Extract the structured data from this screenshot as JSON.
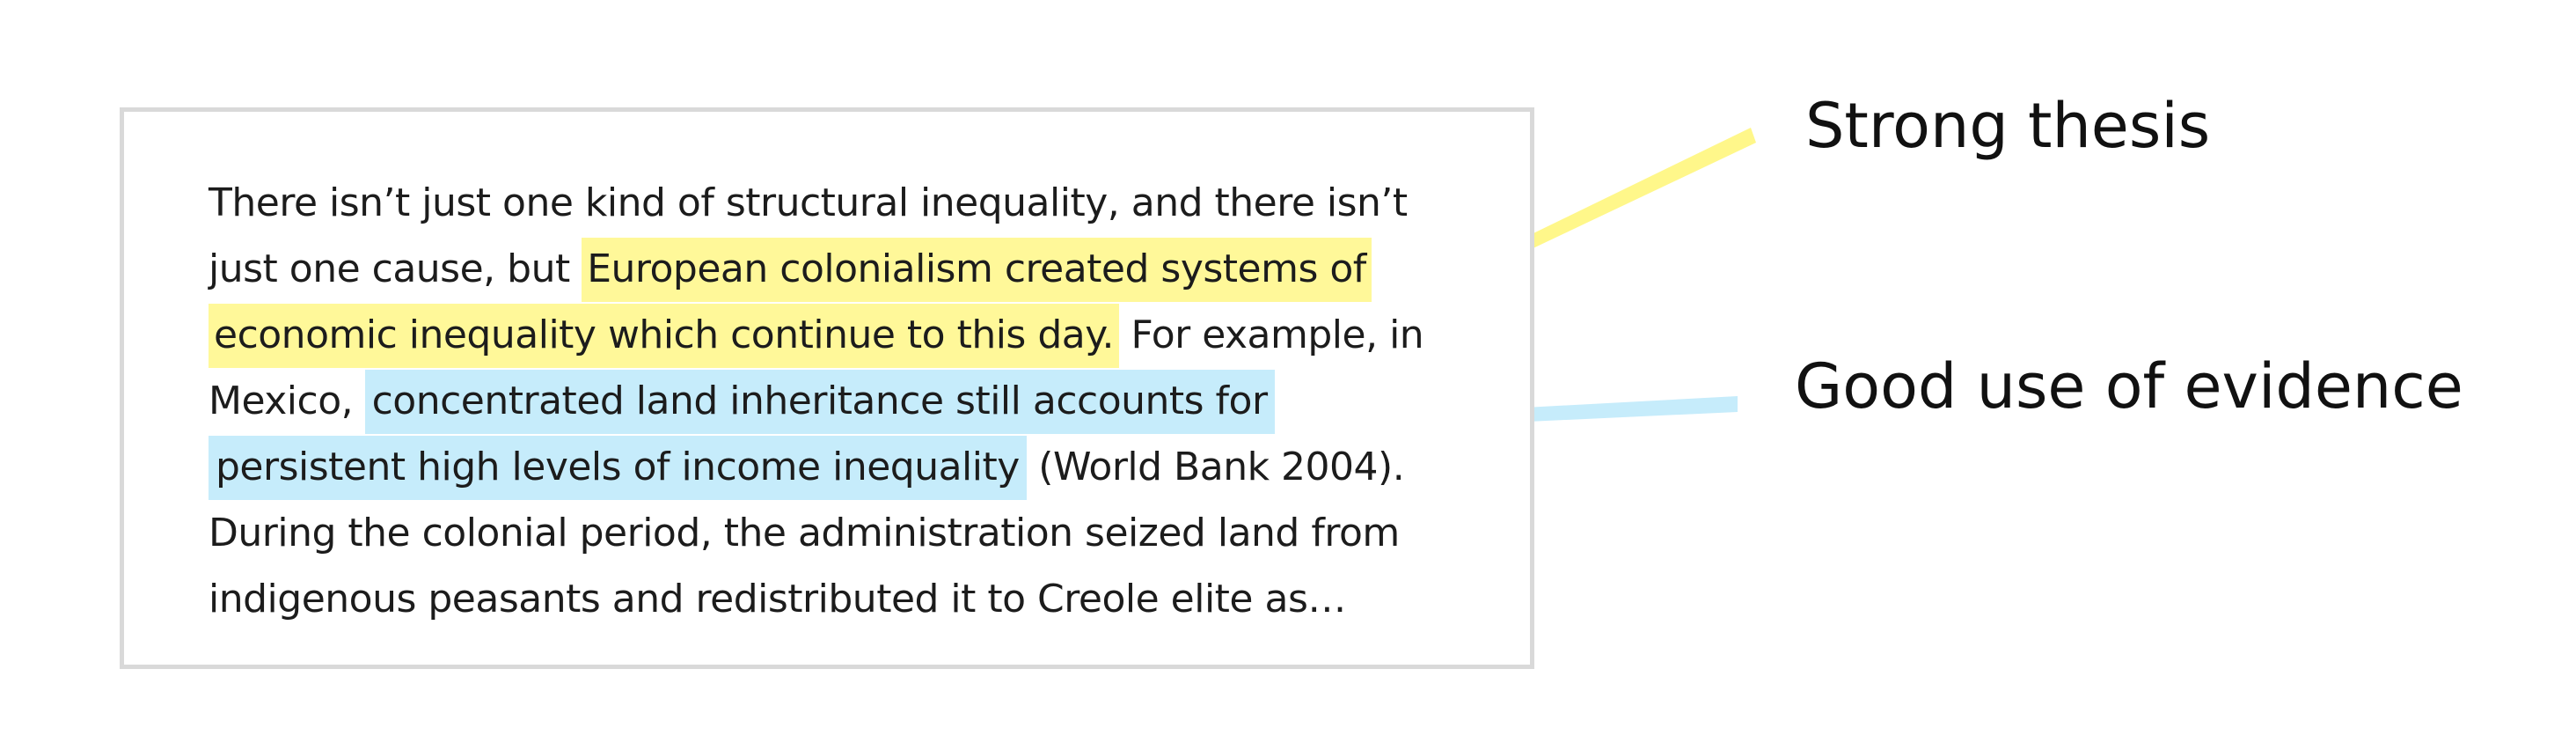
{
  "essay": {
    "lines": [
      {
        "segments": [
          {
            "text": "There isn’t just one kind of structural inequality, and there isn’t",
            "highlight": "none"
          }
        ]
      },
      {
        "segments": [
          {
            "text": "just one cause, but ",
            "highlight": "none"
          },
          {
            "text": "European colonialism created systems of",
            "highlight": "thesis"
          }
        ]
      },
      {
        "segments": [
          {
            "text": "economic inequality which continue to this day.",
            "highlight": "thesis"
          },
          {
            "text": " For example, in",
            "highlight": "none"
          }
        ]
      },
      {
        "segments": [
          {
            "text": "Mexico, ",
            "highlight": "none"
          },
          {
            "text": "concentrated land inheritance still accounts for",
            "highlight": "evidence"
          }
        ]
      },
      {
        "segments": [
          {
            "text": "persistent high levels of income inequality",
            "highlight": "evidence"
          },
          {
            "text": "  (World Bank 2004).",
            "highlight": "none"
          }
        ]
      },
      {
        "segments": [
          {
            "text": "During the colonial period, the administration seized land from",
            "highlight": "none"
          }
        ]
      },
      {
        "segments": [
          {
            "text": "indigenous peasants and redistributed it to Creole elite as…",
            "highlight": "none"
          }
        ]
      }
    ]
  },
  "annotations": {
    "thesis": "Strong thesis",
    "evidence": "Good use of evidence"
  },
  "colors": {
    "thesis_highlight": "#fff899",
    "evidence_highlight": "#c6ecfb",
    "thesis_connector": "#fff78a",
    "evidence_connector": "#c6ecfb",
    "box_border": "#d9d9d9",
    "text": "#1c1c1c"
  }
}
